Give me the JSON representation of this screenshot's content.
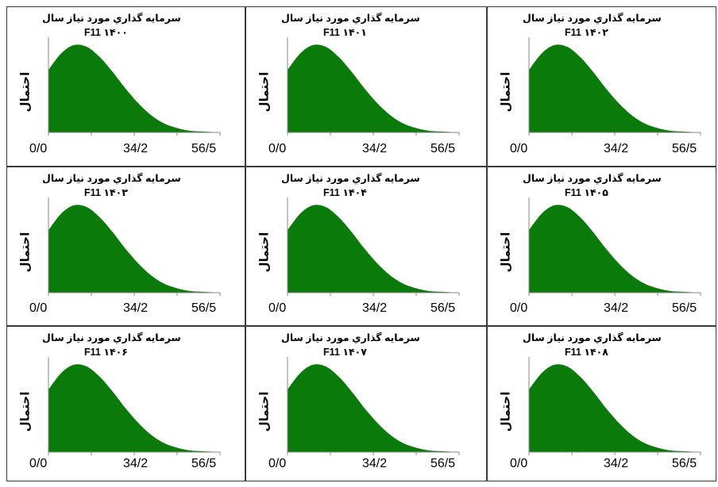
{
  "chart_data": [
    {
      "type": "area",
      "title": "سرمایه گذاري مورد نیاز سال",
      "subtitle": "F11 ۱۴۰۰",
      "ylabel": "احتمال",
      "x_ticks": [
        "0/0",
        "34/2",
        "56/5"
      ],
      "xlim": [
        0,
        67
      ],
      "ylim": [
        0,
        1
      ],
      "x": [
        0,
        5,
        10,
        15,
        20,
        25,
        30,
        35,
        40,
        45,
        50,
        55,
        60,
        67
      ],
      "y": [
        0.68,
        0.86,
        0.95,
        0.93,
        0.82,
        0.66,
        0.48,
        0.32,
        0.19,
        0.1,
        0.05,
        0.02,
        0.01,
        0.0
      ],
      "color": "#0a7a0a"
    },
    {
      "type": "area",
      "title": "سرمایه گذاري مورد نیاز سال",
      "subtitle": "F11 ۱۴۰۱",
      "ylabel": "احتمال",
      "x_ticks": [
        "0/0",
        "34/2",
        "56/5"
      ],
      "xlim": [
        0,
        67
      ],
      "ylim": [
        0,
        1
      ],
      "x": [
        0,
        5,
        10,
        15,
        20,
        25,
        30,
        35,
        40,
        45,
        50,
        55,
        60,
        67
      ],
      "y": [
        0.68,
        0.86,
        0.95,
        0.93,
        0.82,
        0.66,
        0.48,
        0.32,
        0.19,
        0.1,
        0.05,
        0.02,
        0.01,
        0.0
      ],
      "color": "#0a7a0a"
    },
    {
      "type": "area",
      "title": "سرمایه گذاري مورد نیاز سال",
      "subtitle": "F11 ۱۴۰۲",
      "ylabel": "احتمال",
      "x_ticks": [
        "0/0",
        "34/2",
        "56/5"
      ],
      "xlim": [
        0,
        67
      ],
      "ylim": [
        0,
        1
      ],
      "x": [
        0,
        5,
        10,
        15,
        20,
        25,
        30,
        35,
        40,
        45,
        50,
        55,
        60,
        67
      ],
      "y": [
        0.68,
        0.86,
        0.95,
        0.93,
        0.82,
        0.66,
        0.48,
        0.32,
        0.19,
        0.1,
        0.05,
        0.02,
        0.01,
        0.0
      ],
      "color": "#0a7a0a"
    },
    {
      "type": "area",
      "title": "سرمایه گذاري مورد نیاز سال",
      "subtitle": "F11 ۱۴۰۳",
      "ylabel": "احتمال",
      "x_ticks": [
        "0/0",
        "34/2",
        "56/5"
      ],
      "xlim": [
        0,
        67
      ],
      "ylim": [
        0,
        1
      ],
      "x": [
        0,
        5,
        10,
        15,
        20,
        25,
        30,
        35,
        40,
        45,
        50,
        55,
        60,
        67
      ],
      "y": [
        0.68,
        0.86,
        0.95,
        0.93,
        0.82,
        0.66,
        0.48,
        0.32,
        0.19,
        0.1,
        0.05,
        0.02,
        0.01,
        0.0
      ],
      "color": "#0a7a0a"
    },
    {
      "type": "area",
      "title": "سرمایه گذاري مورد نیاز سال",
      "subtitle": "F11 ۱۴۰۴",
      "ylabel": "احتمال",
      "x_ticks": [
        "0/0",
        "34/2",
        "56/5"
      ],
      "xlim": [
        0,
        67
      ],
      "ylim": [
        0,
        1
      ],
      "x": [
        0,
        5,
        10,
        15,
        20,
        25,
        30,
        35,
        40,
        45,
        50,
        55,
        60,
        67
      ],
      "y": [
        0.68,
        0.86,
        0.95,
        0.93,
        0.82,
        0.66,
        0.48,
        0.32,
        0.19,
        0.1,
        0.05,
        0.02,
        0.01,
        0.0
      ],
      "color": "#0a7a0a"
    },
    {
      "type": "area",
      "title": "سرمایه گذاري مورد نیاز سال",
      "subtitle": "F11 ۱۴۰۵",
      "ylabel": "احتمال",
      "x_ticks": [
        "0/0",
        "34/2",
        "56/5"
      ],
      "xlim": [
        0,
        67
      ],
      "ylim": [
        0,
        1
      ],
      "x": [
        0,
        5,
        10,
        15,
        20,
        25,
        30,
        35,
        40,
        45,
        50,
        55,
        60,
        67
      ],
      "y": [
        0.68,
        0.86,
        0.95,
        0.93,
        0.82,
        0.66,
        0.48,
        0.32,
        0.19,
        0.1,
        0.05,
        0.02,
        0.01,
        0.0
      ],
      "color": "#0a7a0a"
    },
    {
      "type": "area",
      "title": "سرمایه گذاري مورد نیاز سال",
      "subtitle": "F11 ۱۴۰۶",
      "ylabel": "احتمال",
      "x_ticks": [
        "0/0",
        "34/2",
        "56/5"
      ],
      "xlim": [
        0,
        67
      ],
      "ylim": [
        0,
        1
      ],
      "x": [
        0,
        5,
        10,
        15,
        20,
        25,
        30,
        35,
        40,
        45,
        50,
        55,
        60,
        67
      ],
      "y": [
        0.68,
        0.86,
        0.95,
        0.93,
        0.82,
        0.66,
        0.48,
        0.32,
        0.19,
        0.1,
        0.05,
        0.02,
        0.01,
        0.0
      ],
      "color": "#0a7a0a"
    },
    {
      "type": "area",
      "title": "سرمایه گذاري مورد نیاز سال",
      "subtitle": "F11 ۱۴۰۷",
      "ylabel": "احتمال",
      "x_ticks": [
        "0/0",
        "34/2",
        "56/5"
      ],
      "xlim": [
        0,
        67
      ],
      "ylim": [
        0,
        1
      ],
      "x": [
        0,
        5,
        10,
        15,
        20,
        25,
        30,
        35,
        40,
        45,
        50,
        55,
        60,
        67
      ],
      "y": [
        0.68,
        0.86,
        0.95,
        0.93,
        0.82,
        0.66,
        0.48,
        0.32,
        0.19,
        0.1,
        0.05,
        0.02,
        0.01,
        0.0
      ],
      "color": "#0a7a0a"
    },
    {
      "type": "area",
      "title": "سرمایه گذاري مورد نیاز سال",
      "subtitle": "F11 ۱۴۰۸",
      "ylabel": "احتمال",
      "x_ticks": [
        "0/0",
        "34/2",
        "56/5"
      ],
      "xlim": [
        0,
        67
      ],
      "ylim": [
        0,
        1
      ],
      "x": [
        0,
        5,
        10,
        15,
        20,
        25,
        30,
        35,
        40,
        45,
        50,
        55,
        60,
        67
      ],
      "y": [
        0.68,
        0.86,
        0.95,
        0.93,
        0.82,
        0.66,
        0.48,
        0.32,
        0.19,
        0.1,
        0.05,
        0.02,
        0.01,
        0.0
      ],
      "color": "#0a7a0a"
    }
  ]
}
